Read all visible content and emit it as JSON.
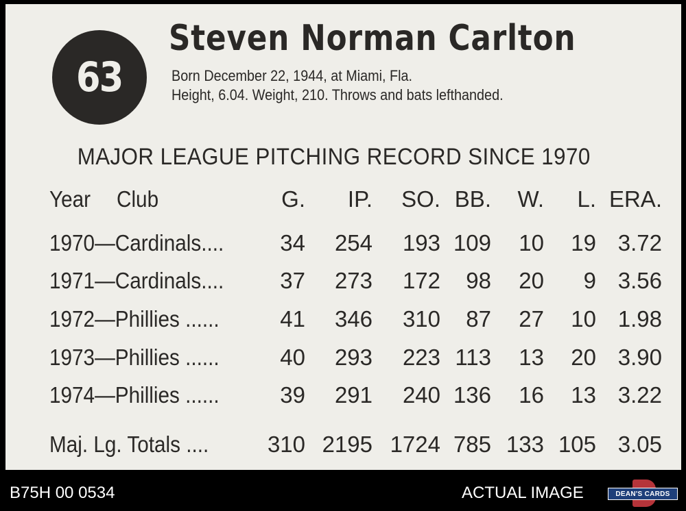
{
  "card": {
    "number": "63",
    "name": "Steven Norman Carlton",
    "bio_line1": "Born December 22, 1944, at Miami, Fla.",
    "bio_line2": "Height, 6.04. Weight, 210. Throws and bats lefthanded.",
    "heading": "MAJOR LEAGUE PITCHING RECORD SINCE 1970",
    "columns": {
      "year": "Year",
      "club": "Club",
      "g": "G.",
      "ip": "IP.",
      "so": "SO.",
      "bb": "BB.",
      "w": "W.",
      "l": "L.",
      "era": "ERA."
    },
    "rows": [
      {
        "label": "1970—Cardinals....",
        "g": "34",
        "ip": "254",
        "so": "193",
        "bb": "109",
        "w": "10",
        "l": "19",
        "era": "3.72"
      },
      {
        "label": "1971—Cardinals....",
        "g": "37",
        "ip": "273",
        "so": "172",
        "bb": "98",
        "w": "20",
        "l": "9",
        "era": "3.56"
      },
      {
        "label": "1972—Phillies ......",
        "g": "41",
        "ip": "346",
        "so": "310",
        "bb": "87",
        "w": "27",
        "l": "10",
        "era": "1.98"
      },
      {
        "label": "1973—Phillies ......",
        "g": "40",
        "ip": "293",
        "so": "223",
        "bb": "113",
        "w": "13",
        "l": "20",
        "era": "3.90"
      },
      {
        "label": "1974—Phillies ......",
        "g": "39",
        "ip": "291",
        "so": "240",
        "bb": "136",
        "w": "16",
        "l": "13",
        "era": "3.22"
      }
    ],
    "totals": {
      "label": "Maj. Lg. Totals ....",
      "g": "310",
      "ip": "2195",
      "so": "1724",
      "bb": "785",
      "w": "133",
      "l": "105",
      "era": "3.05"
    }
  },
  "footer": {
    "code": "B75H 00 0534",
    "actual_image": "ACTUAL IMAGE",
    "logo_text": "DEAN'S CARDS",
    "logo_icon": "deans-cards-logo-icon"
  }
}
